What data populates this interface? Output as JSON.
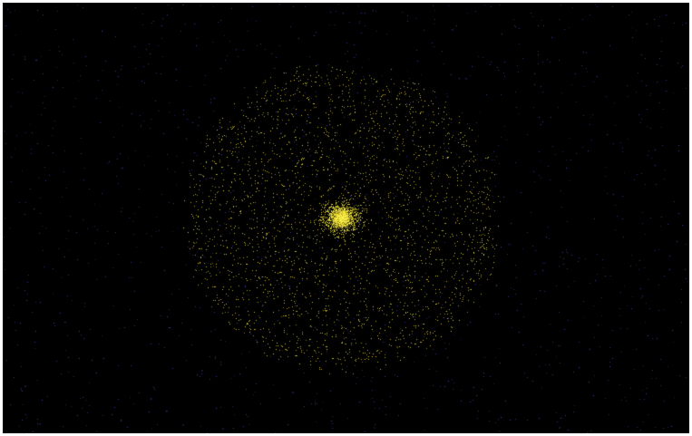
{
  "window": {
    "title": ""
  },
  "scene": {
    "description_visible_text": "",
    "background_color": "#000000",
    "frame_color": "#ffffff",
    "star_color": "#4b44a8",
    "galaxy_particle_color": "#d8c830",
    "core_color": "#fff23a",
    "star_count": 1400,
    "galaxy_particle_count": 5200,
    "core_particle_count": 900
  }
}
